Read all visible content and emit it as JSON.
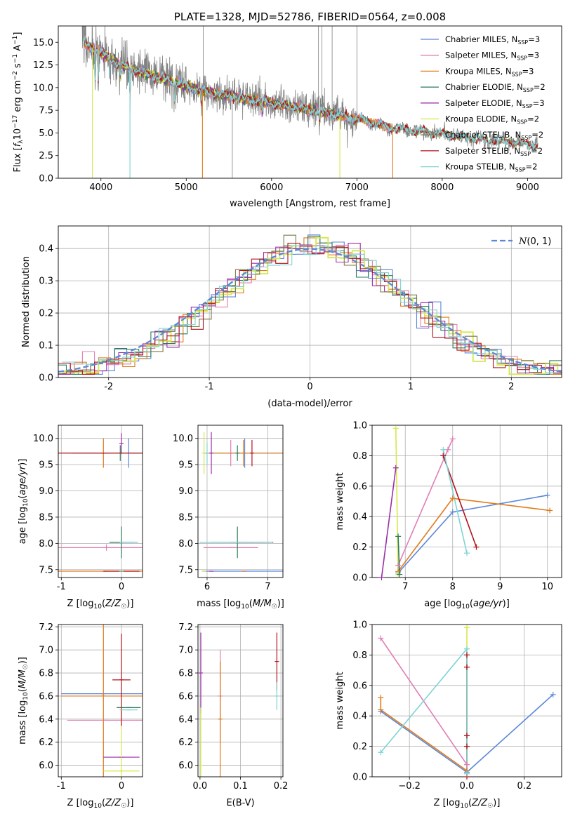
{
  "figure": {
    "colors": {
      "chabrier_miles": "#5b87d9",
      "salpeter_miles": "#e07fb4",
      "kroupa_miles": "#e07a1a",
      "chabrier_elodie": "#2d7d5b",
      "salpeter_elodie": "#9b2fa8",
      "kroupa_elodie": "#d6e84a",
      "chabrier_stelib": "#7a7a4a",
      "salpeter_stelib": "#b3141c",
      "kroupa_stelib": "#7fd3d4",
      "data_gray": "#808080",
      "normal_curve": "#5b87d9",
      "grid": "#b0b0b0"
    }
  },
  "chart_data": [
    {
      "id": "spectrum",
      "type": "line",
      "title": "PLATE=1328, MJD=52786, FIBERID=0564, z=0.008",
      "xlabel": "wavelength [Angstrom, rest frame]",
      "ylabel": "Flux [f_λ 10^-17 erg cm^-2 s^-1 A^-1]",
      "xlim": [
        3500,
        9400
      ],
      "ylim": [
        0,
        16.8
      ],
      "xticks": [
        4000,
        5000,
        6000,
        7000,
        8000,
        9000
      ],
      "yticks": [
        0.0,
        2.5,
        5.0,
        7.5,
        10.0,
        12.5,
        15.0
      ],
      "grid": false,
      "legend_position": "top-right",
      "legend": [
        "Chabrier MILES, N_SSP=3",
        "Salpeter MILES, N_SSP=3",
        "Kroupa MILES, N_SSP=3",
        "Chabrier ELODIE, N_SSP=2",
        "Salpeter ELODIE, N_SSP=3",
        "Kroupa ELODIE, N_SSP=2",
        "Chabrier STELIB, N_SSP=2",
        "Salpeter STELIB, N_SSP=2",
        "Kroupa STELIB, N_SSP=2"
      ],
      "continuum": {
        "x": [
          3780,
          3850,
          4000,
          4200,
          4500,
          4800,
          5000,
          5200,
          5500,
          5800,
          6000,
          6300,
          6600,
          7000,
          7400,
          7800,
          8200,
          8600,
          9000,
          9120
        ],
        "y": [
          14.8,
          14.6,
          13.9,
          12.7,
          11.6,
          10.8,
          10.2,
          9.6,
          9.1,
          8.6,
          8.3,
          7.8,
          7.3,
          6.6,
          5.6,
          5.1,
          4.6,
          4.2,
          3.8,
          3.7
        ]
      },
      "series": [
        {
          "name": "Chabrier MILES, N_SSP=3",
          "xmin": 3800,
          "xmax": 7420
        },
        {
          "name": "Salpeter MILES, N_SSP=3",
          "xmin": 3800,
          "xmax": 7420
        },
        {
          "name": "Kroupa MILES, N_SSP=3",
          "xmin": 3800,
          "xmax": 7420
        },
        {
          "name": "Chabrier ELODIE, N_SSP=2",
          "xmin": 3900,
          "xmax": 6800
        },
        {
          "name": "Salpeter ELODIE, N_SSP=3",
          "xmin": 3900,
          "xmax": 6800
        },
        {
          "name": "Kroupa ELODIE, N_SSP=2",
          "xmin": 3900,
          "xmax": 6800
        },
        {
          "name": "Chabrier STELIB, N_SSP=2",
          "xmin": 3800,
          "xmax": 9120
        },
        {
          "name": "Salpeter STELIB, N_SSP=2",
          "xmin": 3800,
          "xmax": 9120
        },
        {
          "name": "Kroupa STELIB, N_SSP=2",
          "xmin": 3800,
          "xmax": 9120
        }
      ]
    },
    {
      "id": "residuals",
      "type": "line",
      "xlabel": "(data-model)/error",
      "ylabel": "Normed distribution",
      "xlim": [
        -2.5,
        2.5
      ],
      "ylim": [
        0,
        0.47
      ],
      "xticks": [
        -2,
        -1,
        0,
        1,
        2
      ],
      "yticks": [
        0.0,
        0.1,
        0.2,
        0.3,
        0.4
      ],
      "grid": true,
      "legend": [
        "N(0, 1)"
      ],
      "legend_position": "top-right",
      "bin_width": 0.12,
      "histogram_peak": 0.405,
      "histogram_sigma": 0.95
    },
    {
      "id": "age_vs_Z",
      "type": "scatter",
      "xlabel": "Z [log10(Z/Z☉)]",
      "ylabel": "age [log10(age/yr)]",
      "xlim": [
        -1.05,
        0.35
      ],
      "ylim": [
        7.35,
        10.25
      ],
      "xticks": [
        -1,
        0
      ],
      "yticks": [
        7.5,
        8.0,
        8.5,
        9.0,
        9.5,
        10.0
      ],
      "grid": true,
      "points": [
        {
          "x": 0.12,
          "y": 9.72,
          "x_err": 0.95,
          "y_err": 0.28,
          "color": "#5b87d9"
        },
        {
          "x": 0.12,
          "y": 8.02,
          "x_err": 0.15,
          "y_err": 0.0,
          "color": "#5b87d9"
        },
        {
          "x": -0.25,
          "y": 7.92,
          "x_err": 0.95,
          "y_err": 0.06,
          "color": "#e07fb4"
        },
        {
          "x": -0.27,
          "y": 7.47,
          "x_err": 0.0,
          "y_err": 0.0,
          "color": "#e07fb4"
        },
        {
          "x": -0.3,
          "y": 9.72,
          "x_err": 0.0,
          "y_err": 0.28,
          "color": "#e07a1a"
        },
        {
          "x": -0.3,
          "y": 7.47,
          "x_err": 1.0,
          "y_err": 0.0,
          "color": "#e07a1a"
        },
        {
          "x": -0.02,
          "y": 9.72,
          "x_err": 0.0,
          "y_err": 0.15,
          "color": "#2d7d5b"
        },
        {
          "x": 0.0,
          "y": 8.02,
          "x_err": 0.2,
          "y_err": 0.3,
          "color": "#2d7d5b"
        },
        {
          "x": 0.0,
          "y": 9.9,
          "x_err": 0.0,
          "y_err": 0.2,
          "color": "#9b2fa8"
        },
        {
          "x": 0.0,
          "y": 7.47,
          "x_err": 0.0,
          "y_err": 0.0,
          "color": "#9b2fa8"
        },
        {
          "x": 0.0,
          "y": 9.72,
          "x_err": 0.2,
          "y_err": 0.0,
          "color": "#d6e84a"
        },
        {
          "x": 0.0,
          "y": 7.47,
          "x_err": 0.3,
          "y_err": 0.0,
          "color": "#d6e84a"
        },
        {
          "x": -0.3,
          "y": 9.72,
          "x_err": 0.95,
          "y_err": 0.0,
          "color": "#7a7a4a"
        },
        {
          "x": 0.0,
          "y": 7.47,
          "x_err": 0.0,
          "y_err": 0.0,
          "color": "#7a7a4a"
        },
        {
          "x": -0.3,
          "y": 9.72,
          "x_err": 0.95,
          "y_err": 0.0,
          "color": "#b3141c"
        },
        {
          "x": 0.0,
          "y": 7.47,
          "x_err": 0.3,
          "y_err": 0.0,
          "color": "#b3141c"
        },
        {
          "x": 0.12,
          "y": 8.02,
          "x_err": 0.15,
          "y_err": 0.0,
          "color": "#7fd3d4"
        },
        {
          "x": 0.0,
          "y": 7.47,
          "x_err": 0.0,
          "y_err": 0.0,
          "color": "#7fd3d4"
        }
      ]
    },
    {
      "id": "age_vs_mass",
      "type": "scatter",
      "xlabel": "mass [log10(M/M☉)]",
      "ylabel": "",
      "xlim": [
        5.85,
        7.25
      ],
      "ylim": [
        7.35,
        10.25
      ],
      "xticks": [
        6,
        7
      ],
      "yticks": [
        7.5,
        8.0,
        8.5,
        9.0,
        9.5,
        10.0
      ],
      "grid": true,
      "points": [
        {
          "x": 6.62,
          "y": 9.72,
          "x_err": 0.65,
          "y_err": 0.28,
          "color": "#5b87d9"
        },
        {
          "x": 6.62,
          "y": 7.47,
          "x_err": 0.7,
          "y_err": 0.0,
          "color": "#5b87d9"
        },
        {
          "x": 6.39,
          "y": 7.92,
          "x_err": 0.45,
          "y_err": 0.0,
          "color": "#e07fb4"
        },
        {
          "x": 6.39,
          "y": 9.72,
          "x_err": 0.0,
          "y_err": 0.25,
          "color": "#e07fb4"
        },
        {
          "x": 6.6,
          "y": 9.72,
          "x_err": 0.65,
          "y_err": 0.25,
          "color": "#e07a1a"
        },
        {
          "x": 6.6,
          "y": 7.47,
          "x_err": 0.0,
          "y_err": 0.0,
          "color": "#e07a1a"
        },
        {
          "x": 6.5,
          "y": 9.72,
          "x_err": 0.0,
          "y_err": 0.15,
          "color": "#2d7d5b"
        },
        {
          "x": 6.5,
          "y": 8.02,
          "x_err": 0.45,
          "y_err": 0.3,
          "color": "#2d7d5b"
        },
        {
          "x": 6.07,
          "y": 9.72,
          "x_err": 0.0,
          "y_err": 0.4,
          "color": "#9b2fa8"
        },
        {
          "x": 6.07,
          "y": 7.47,
          "x_err": 0.0,
          "y_err": 0.0,
          "color": "#9b2fa8"
        },
        {
          "x": 5.95,
          "y": 9.72,
          "x_err": 0.0,
          "y_err": 0.4,
          "color": "#d6e84a"
        },
        {
          "x": 5.95,
          "y": 7.47,
          "x_err": 0.0,
          "y_err": 0.0,
          "color": "#d6e84a"
        },
        {
          "x": 6.74,
          "y": 8.02,
          "x_err": 0.35,
          "y_err": 0.0,
          "color": "#b3141c"
        },
        {
          "x": 6.74,
          "y": 9.72,
          "x_err": 0.0,
          "y_err": 0.25,
          "color": "#b3141c"
        },
        {
          "x": 6.48,
          "y": 8.02,
          "x_err": 0.6,
          "y_err": 0.0,
          "color": "#7fd3d4"
        },
        {
          "x": 6.0,
          "y": 9.72,
          "x_err": 0.0,
          "y_err": 0.2,
          "color": "#7fd3d4"
        }
      ]
    },
    {
      "id": "weight_vs_age",
      "type": "line",
      "xlabel": "age [log10(age/yr)]",
      "ylabel": "mass weight",
      "xlim": [
        6.3,
        10.3
      ],
      "ylim": [
        0,
        1.0
      ],
      "xticks": [
        7,
        8,
        9,
        10
      ],
      "yticks": [
        0.0,
        0.2,
        0.4,
        0.6,
        0.8,
        1.0
      ],
      "grid": true,
      "series": [
        {
          "color": "#5b87d9",
          "x": [
            6.85,
            8.0,
            10.0
          ],
          "y": [
            0.03,
            0.43,
            0.54
          ]
        },
        {
          "color": "#e07fb4",
          "x": [
            6.85,
            7.9,
            8.0
          ],
          "y": [
            0.08,
            0.84,
            0.91
          ]
        },
        {
          "color": "#e07a1a",
          "x": [
            6.85,
            8.0,
            10.05
          ],
          "y": [
            0.04,
            0.52,
            0.44
          ]
        },
        {
          "color": "#9b2fa8",
          "x": [
            6.5,
            6.8
          ],
          "y": [
            0.0,
            0.72
          ]
        },
        {
          "color": "#d6e84a",
          "x": [
            6.8,
            6.85
          ],
          "y": [
            0.98,
            0.02
          ]
        },
        {
          "color": "#b3141c",
          "x": [
            7.8,
            8.5
          ],
          "y": [
            0.8,
            0.2
          ]
        },
        {
          "color": "#7fd3d4",
          "x": [
            7.8,
            8.3
          ],
          "y": [
            0.84,
            0.16
          ]
        },
        {
          "color": "#2d7d5b",
          "x": [
            6.85,
            6.88
          ],
          "y": [
            0.27,
            0.02
          ]
        }
      ]
    },
    {
      "id": "mass_vs_Z",
      "type": "scatter",
      "xlabel": "Z [log10(Z/Z☉)]",
      "ylabel": "mass [log10(M/M☉)]",
      "xlim": [
        -1.05,
        0.35
      ],
      "ylim": [
        5.9,
        7.22
      ],
      "xticks": [
        -1,
        0
      ],
      "yticks": [
        6.0,
        6.2,
        6.4,
        6.6,
        6.8,
        7.0,
        7.2
      ],
      "grid": true,
      "points": [
        {
          "x": -0.3,
          "y": 6.62,
          "x_err": 0.7,
          "y_err": 0.0,
          "color": "#5b87d9"
        },
        {
          "x": -0.25,
          "y": 6.39,
          "x_err": 0.65,
          "y_err": 0.0,
          "color": "#e07fb4"
        },
        {
          "x": -0.3,
          "y": 6.6,
          "x_err": 0.7,
          "y_err": 0.7,
          "color": "#e07a1a"
        },
        {
          "x": 0.12,
          "y": 6.5,
          "x_err": 0.2,
          "y_err": 0.0,
          "color": "#2d7d5b"
        },
        {
          "x": 0.0,
          "y": 6.07,
          "x_err": 0.3,
          "y_err": 0.0,
          "color": "#9b2fa8"
        },
        {
          "x": 0.0,
          "y": 5.95,
          "x_err": 0.3,
          "y_err": 0.55,
          "color": "#d6e84a"
        },
        {
          "x": 0.0,
          "y": 6.74,
          "x_err": 0.15,
          "y_err": 0.4,
          "color": "#b3141c"
        },
        {
          "x": 0.12,
          "y": 6.48,
          "x_err": 0.15,
          "y_err": 0.0,
          "color": "#7fd3d4"
        }
      ]
    },
    {
      "id": "mass_vs_ebv",
      "type": "scatter",
      "xlabel": "E(B-V)",
      "ylabel": "",
      "xlim": [
        -0.005,
        0.205
      ],
      "ylim": [
        5.9,
        7.22
      ],
      "xticks": [
        0.0,
        0.1,
        0.2
      ],
      "yticks": [
        6.0,
        6.2,
        6.4,
        6.6,
        6.8,
        7.0,
        7.2
      ],
      "grid": true,
      "points": [
        {
          "x": 0.05,
          "y": 6.6,
          "x_err": 0.0,
          "y_err": 0.4,
          "color": "#e07fb4"
        },
        {
          "x": 0.05,
          "y": 6.4,
          "x_err": 0.0,
          "y_err": 0.5,
          "color": "#e07a1a"
        },
        {
          "x": 0.002,
          "y": 6.8,
          "x_err": 0.0,
          "y_err": 0.35,
          "color": "#9b2fa8"
        },
        {
          "x": 0.002,
          "y": 6.0,
          "x_err": 0.0,
          "y_err": 0.5,
          "color": "#d6e84a"
        },
        {
          "x": 0.19,
          "y": 6.9,
          "x_err": 0.0,
          "y_err": 0.25,
          "color": "#b3141c"
        },
        {
          "x": 0.19,
          "y": 6.6,
          "x_err": 0.0,
          "y_err": 0.12,
          "color": "#7fd3d4"
        }
      ]
    },
    {
      "id": "weight_vs_Z",
      "type": "line",
      "xlabel": "Z [log10(Z/Z☉)]",
      "ylabel": "mass weight",
      "xlim": [
        -0.33,
        0.33
      ],
      "ylim": [
        0,
        1.0
      ],
      "xticks": [
        -0.2,
        0.0,
        0.2
      ],
      "yticks": [
        0.0,
        0.2,
        0.4,
        0.6,
        0.8,
        1.0
      ],
      "grid": true,
      "series": [
        {
          "color": "#5b87d9",
          "x": [
            -0.3,
            0.0,
            0.3
          ],
          "y": [
            0.43,
            0.03,
            0.54
          ]
        },
        {
          "color": "#e07fb4",
          "x": [
            -0.3,
            0.0
          ],
          "y": [
            0.91,
            0.08
          ]
        },
        {
          "color": "#e07a1a",
          "x": [
            -0.3,
            -0.3,
            0.0
          ],
          "y": [
            0.52,
            0.44,
            0.04
          ]
        },
        {
          "color": "#d6e84a",
          "x": [
            0.0,
            0.0
          ],
          "y": [
            0.98,
            0.02
          ]
        },
        {
          "color": "#b3141c",
          "x": [
            0.0,
            0.0,
            0.0,
            0.0,
            0.0
          ],
          "y": [
            0.8,
            0.72,
            0.27,
            0.2,
            0.0
          ]
        },
        {
          "color": "#7fd3d4",
          "x": [
            -0.3,
            0.0,
            0.0
          ],
          "y": [
            0.16,
            0.84,
            0.02
          ]
        }
      ]
    }
  ]
}
